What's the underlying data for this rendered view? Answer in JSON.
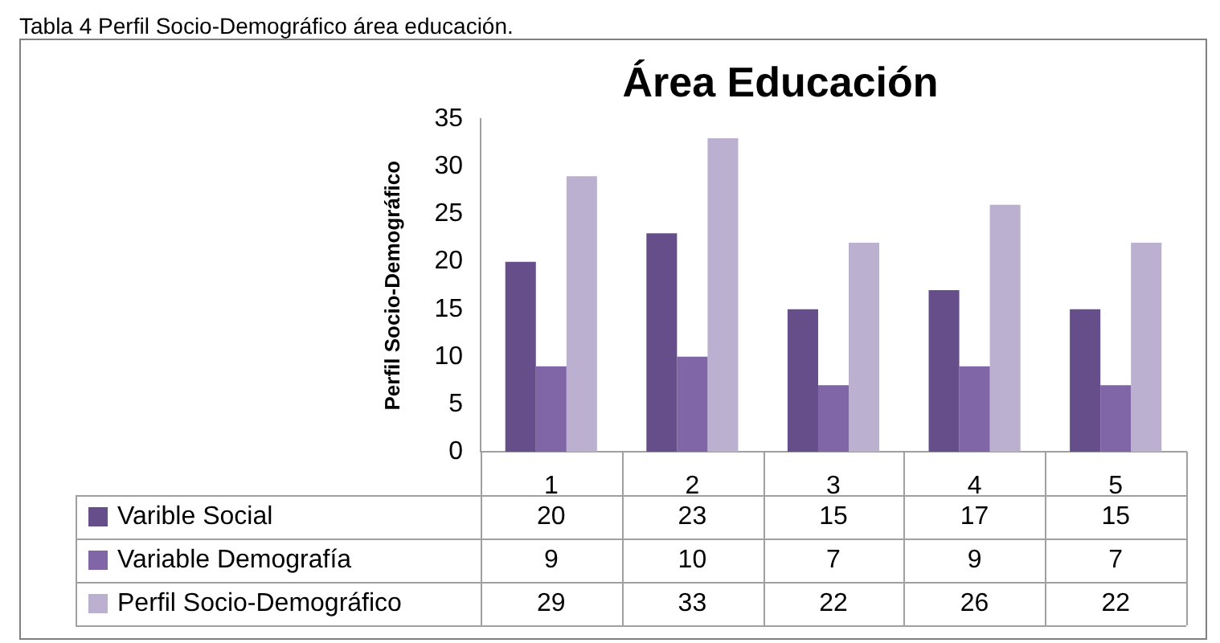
{
  "chart_data": {
    "type": "bar",
    "title": "Área Educación",
    "ylabel": "Perfil Socio-Demográfico",
    "annotations": [
      "Tabla 4 Perfil Socio-Demográfico área educación."
    ],
    "categories": [
      "1",
      "2",
      "3",
      "4",
      "5"
    ],
    "series": [
      {
        "name": "Varible Social",
        "color": "#664e8a",
        "values": [
          20,
          23,
          15,
          17,
          15
        ]
      },
      {
        "name": "Variable Demografía",
        "color": "#8066a6",
        "values": [
          9,
          10,
          7,
          9,
          7
        ]
      },
      {
        "name": "Perfil Socio-Demográfico",
        "color": "#bbb0d0",
        "values": [
          29,
          33,
          22,
          26,
          22
        ]
      }
    ],
    "ylim": [
      0,
      35
    ],
    "yticks": [
      0,
      5,
      10,
      15,
      20,
      25,
      30,
      35
    ],
    "grid": false,
    "legend": "bottom",
    "data_labels": true
  }
}
